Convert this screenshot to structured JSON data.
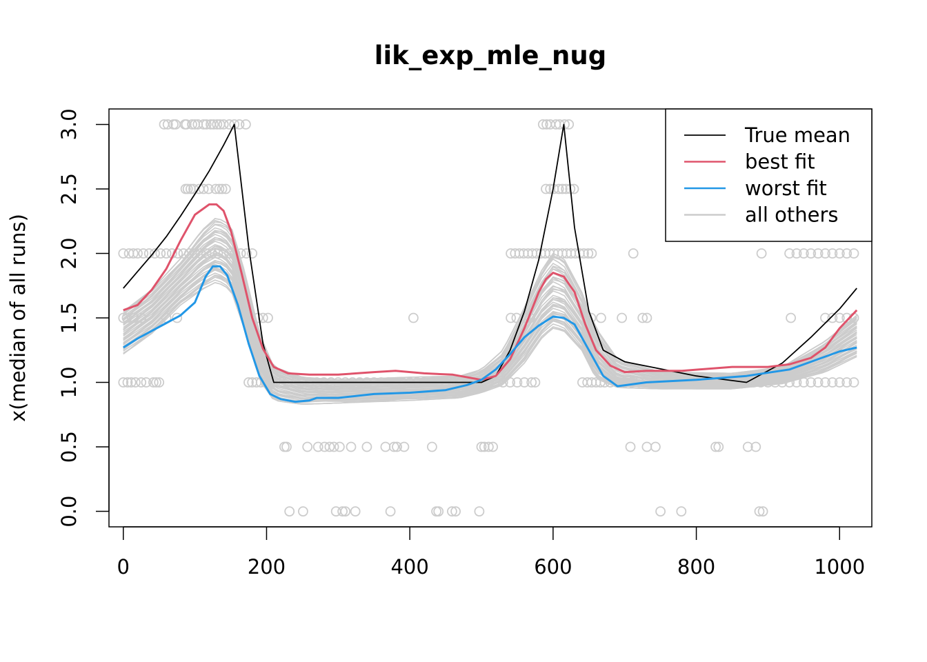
{
  "chart_data": {
    "type": "line",
    "title": "lik_exp_mle_nug",
    "xlabel": "",
    "ylabel": "x(median of all runs)",
    "xlim": [
      -20,
      1045
    ],
    "ylim": [
      -0.12,
      3.12
    ],
    "x_ticks": [
      0,
      200,
      400,
      600,
      800,
      1000
    ],
    "y_ticks": [
      0.0,
      0.5,
      1.0,
      1.5,
      2.0,
      2.5,
      3.0
    ],
    "x_tick_labels": [
      "0",
      "200",
      "400",
      "600",
      "800",
      "1000"
    ],
    "y_tick_labels": [
      "0.0",
      "0.5",
      "1.0",
      "1.5",
      "2.0",
      "2.5",
      "3.0"
    ],
    "grid": false,
    "legend": {
      "position": "top-right",
      "entries": [
        {
          "label": "True mean",
          "color": "#000000"
        },
        {
          "label": "best fit",
          "color": "#DF536B"
        },
        {
          "label": "worst fit",
          "color": "#2297E6"
        },
        {
          "label": "all others",
          "color": "#CCCCCC"
        }
      ]
    },
    "series": [
      {
        "name": "True mean",
        "color": "#000000",
        "x": [
          0,
          20,
          40,
          60,
          80,
          100,
          120,
          140,
          155,
          175,
          195,
          210,
          300,
          400,
          500,
          520,
          540,
          560,
          580,
          600,
          615,
          630,
          650,
          670,
          700,
          800,
          870,
          920,
          960,
          1000,
          1024
        ],
        "y": [
          1.73,
          1.86,
          1.99,
          2.13,
          2.29,
          2.46,
          2.64,
          2.84,
          3.0,
          2.05,
          1.3,
          1.0,
          1.0,
          1.0,
          1.0,
          1.05,
          1.25,
          1.55,
          1.95,
          2.5,
          3.0,
          2.2,
          1.55,
          1.25,
          1.16,
          1.05,
          1.0,
          1.15,
          1.35,
          1.57,
          1.73
        ]
      },
      {
        "name": "best fit",
        "color": "#DF536B",
        "x": [
          0,
          20,
          40,
          60,
          80,
          100,
          120,
          130,
          140,
          150,
          165,
          180,
          195,
          210,
          230,
          260,
          300,
          350,
          380,
          420,
          460,
          500,
          520,
          540,
          560,
          580,
          590,
          600,
          615,
          630,
          645,
          660,
          680,
          700,
          730,
          780,
          850,
          900,
          930,
          960,
          980,
          1000,
          1024
        ],
        "y": [
          1.56,
          1.6,
          1.72,
          1.88,
          2.1,
          2.3,
          2.38,
          2.38,
          2.33,
          2.18,
          1.85,
          1.5,
          1.26,
          1.12,
          1.07,
          1.06,
          1.06,
          1.08,
          1.09,
          1.07,
          1.06,
          1.02,
          1.05,
          1.18,
          1.42,
          1.7,
          1.8,
          1.85,
          1.82,
          1.7,
          1.45,
          1.25,
          1.13,
          1.08,
          1.09,
          1.09,
          1.12,
          1.12,
          1.14,
          1.19,
          1.27,
          1.42,
          1.56
        ]
      },
      {
        "name": "worst fit",
        "color": "#2297E6",
        "x": [
          0,
          20,
          40,
          60,
          80,
          100,
          115,
          125,
          135,
          145,
          160,
          175,
          190,
          205,
          220,
          240,
          260,
          270,
          300,
          350,
          400,
          450,
          480,
          500,
          520,
          540,
          560,
          580,
          600,
          615,
          630,
          650,
          670,
          690,
          730,
          800,
          870,
          930,
          970,
          1000,
          1024
        ],
        "y": [
          1.27,
          1.34,
          1.4,
          1.46,
          1.52,
          1.62,
          1.82,
          1.9,
          1.9,
          1.83,
          1.6,
          1.3,
          1.05,
          0.91,
          0.87,
          0.85,
          0.86,
          0.88,
          0.88,
          0.91,
          0.92,
          0.94,
          0.98,
          1.02,
          1.1,
          1.22,
          1.35,
          1.44,
          1.51,
          1.5,
          1.45,
          1.25,
          1.05,
          0.97,
          1.0,
          1.02,
          1.05,
          1.1,
          1.18,
          1.24,
          1.27
        ]
      },
      {
        "name": "all others",
        "color": "#CCCCCC",
        "x": [
          0,
          40,
          80,
          110,
          130,
          150,
          170,
          190,
          210,
          250,
          300,
          400,
          470,
          500,
          530,
          560,
          585,
          600,
          615,
          640,
          660,
          690,
          750,
          850,
          920,
          980,
          1024
        ],
        "y_median": [
          1.38,
          1.55,
          1.78,
          1.95,
          2.02,
          1.95,
          1.6,
          1.2,
          1.0,
          0.94,
          0.93,
          0.95,
          0.96,
          1.0,
          1.1,
          1.35,
          1.58,
          1.66,
          1.64,
          1.45,
          1.2,
          1.04,
          1.0,
          1.0,
          1.05,
          1.2,
          1.36
        ],
        "y_low": [
          1.22,
          1.38,
          1.6,
          1.72,
          1.78,
          1.72,
          1.4,
          1.02,
          0.86,
          0.83,
          0.84,
          0.86,
          0.88,
          0.92,
          0.98,
          1.15,
          1.35,
          1.42,
          1.4,
          1.25,
          1.03,
          0.96,
          0.95,
          0.95,
          0.99,
          1.08,
          1.2
        ],
        "y_high": [
          1.55,
          1.72,
          1.96,
          2.18,
          2.28,
          2.22,
          1.85,
          1.38,
          1.12,
          1.04,
          1.02,
          1.04,
          1.05,
          1.1,
          1.25,
          1.58,
          1.88,
          2.0,
          1.96,
          1.7,
          1.42,
          1.18,
          1.08,
          1.07,
          1.12,
          1.32,
          1.52
        ]
      }
    ],
    "points": {
      "color": "#CCCCCC",
      "x": [
        57,
        62,
        70,
        73,
        86,
        88,
        96,
        100,
        104,
        112,
        116,
        122,
        126,
        131,
        135,
        140,
        148,
        155,
        162,
        171,
        87,
        90,
        94,
        98,
        106,
        112,
        119,
        129,
        134,
        138,
        143,
        0,
        8,
        14,
        20,
        28,
        36,
        44,
        52,
        60,
        68,
        76,
        84,
        92,
        100,
        108,
        116,
        124,
        132,
        140,
        148,
        156,
        164,
        172,
        180,
        0,
        5,
        15,
        25,
        60,
        75,
        188,
        195,
        202,
        0,
        6,
        11,
        17,
        25,
        32,
        42,
        46,
        50,
        175,
        180,
        186,
        192,
        198,
        205,
        212,
        220,
        230,
        240,
        250,
        260,
        270,
        280,
        290,
        300,
        310,
        320,
        330,
        340,
        350,
        360,
        370,
        380,
        390,
        400,
        410,
        420,
        430,
        440,
        450,
        460,
        470,
        480,
        490,
        500,
        510,
        520,
        530,
        540,
        550,
        560,
        570,
        575,
        225,
        228,
        257,
        272,
        281,
        288,
        294,
        302,
        318,
        340,
        366,
        378,
        382,
        392,
        431,
        500,
        504,
        510,
        516,
        232,
        251,
        297,
        306,
        310,
        324,
        373,
        437,
        440,
        459,
        464,
        497,
        405,
        541,
        549,
        562,
        568,
        541,
        547,
        553,
        559,
        565,
        571,
        577,
        583,
        589,
        595,
        601,
        607,
        613,
        619,
        625,
        631,
        637,
        643,
        649,
        654,
        586,
        591,
        596,
        604,
        609,
        616,
        622,
        590,
        596,
        601,
        608,
        613,
        618,
        624,
        629,
        641,
        648,
        654,
        660,
        666,
        672,
        680,
        690,
        700,
        710,
        720,
        730,
        740,
        750,
        760,
        770,
        780,
        790,
        800,
        810,
        820,
        830,
        840,
        850,
        860,
        870,
        880,
        890,
        900,
        910,
        920,
        930,
        940,
        950,
        960,
        970,
        980,
        990,
        1000,
        1010,
        1020,
        653,
        667,
        696,
        725,
        731,
        712,
        891,
        930,
        940,
        950,
        960,
        970,
        980,
        990,
        1000,
        1010,
        1020,
        932,
        980,
        990,
        1000,
        1010,
        1020,
        708,
        731,
        743,
        827,
        831,
        872,
        883,
        750,
        779,
        888,
        893
      ],
      "y": [
        3.0,
        3.0,
        3.0,
        3.0,
        3.0,
        3.0,
        3.0,
        3.0,
        3.0,
        3.0,
        3.0,
        3.0,
        3.0,
        3.0,
        3.0,
        3.0,
        3.0,
        3.0,
        3.0,
        3.0,
        2.5,
        2.5,
        2.5,
        2.5,
        2.5,
        2.5,
        2.5,
        2.5,
        2.5,
        2.5,
        2.5,
        2.0,
        2.0,
        2.0,
        2.0,
        2.0,
        2.0,
        2.0,
        2.0,
        2.0,
        2.0,
        2.0,
        2.0,
        2.0,
        2.0,
        2.0,
        2.0,
        2.0,
        2.0,
        2.0,
        2.0,
        2.0,
        2.0,
        2.0,
        2.0,
        1.5,
        1.5,
        1.5,
        1.5,
        1.5,
        1.5,
        1.5,
        1.5,
        1.5,
        1.0,
        1.0,
        1.0,
        1.0,
        1.0,
        1.0,
        1.0,
        1.0,
        1.0,
        1.0,
        1.0,
        1.0,
        1.0,
        1.0,
        1.0,
        1.0,
        1.0,
        1.0,
        1.0,
        1.0,
        1.0,
        1.0,
        1.0,
        1.0,
        1.0,
        1.0,
        1.0,
        1.0,
        1.0,
        1.0,
        1.0,
        1.0,
        1.0,
        1.0,
        1.0,
        1.0,
        1.0,
        1.0,
        1.0,
        1.0,
        1.0,
        1.0,
        1.0,
        1.0,
        1.0,
        1.0,
        1.0,
        1.0,
        1.0,
        1.0,
        1.0,
        1.0,
        1.0,
        0.5,
        0.5,
        0.5,
        0.5,
        0.5,
        0.5,
        0.5,
        0.5,
        0.5,
        0.5,
        0.5,
        0.5,
        0.5,
        0.5,
        0.5,
        0.5,
        0.5,
        0.5,
        0.5,
        0.0,
        0.0,
        0.0,
        0.0,
        0.0,
        0.0,
        0.0,
        0.0,
        0.0,
        0.0,
        0.0,
        0.0,
        1.5,
        1.5,
        1.5,
        1.5,
        1.5,
        2.0,
        2.0,
        2.0,
        2.0,
        2.0,
        2.0,
        2.0,
        2.0,
        2.0,
        2.0,
        2.0,
        2.0,
        2.0,
        2.0,
        2.0,
        2.0,
        2.0,
        2.0,
        2.0,
        2.0,
        3.0,
        3.0,
        3.0,
        3.0,
        3.0,
        3.0,
        3.0,
        2.5,
        2.5,
        2.5,
        2.5,
        2.5,
        2.5,
        2.5,
        2.5,
        1.0,
        1.0,
        1.0,
        1.0,
        1.0,
        1.0,
        1.0,
        1.0,
        1.0,
        1.0,
        1.0,
        1.0,
        1.0,
        1.0,
        1.0,
        1.0,
        1.0,
        1.0,
        1.0,
        1.0,
        1.0,
        1.0,
        1.0,
        1.0,
        1.0,
        1.0,
        1.0,
        1.0,
        1.0,
        1.0,
        1.0,
        1.0,
        1.0,
        1.0,
        1.0,
        1.0,
        1.0,
        1.0,
        1.0,
        1.0,
        1.0,
        1.5,
        1.5,
        1.5,
        1.5,
        1.5,
        2.0,
        2.0,
        2.0,
        2.0,
        2.0,
        2.0,
        2.0,
        2.0,
        2.0,
        2.0,
        2.0,
        2.0,
        1.5,
        1.5,
        1.5,
        1.5,
        1.5,
        1.5,
        0.5,
        0.5,
        0.5,
        0.5,
        0.5,
        0.5,
        0.5,
        0.0,
        0.0,
        0.0,
        0.0
      ]
    }
  }
}
